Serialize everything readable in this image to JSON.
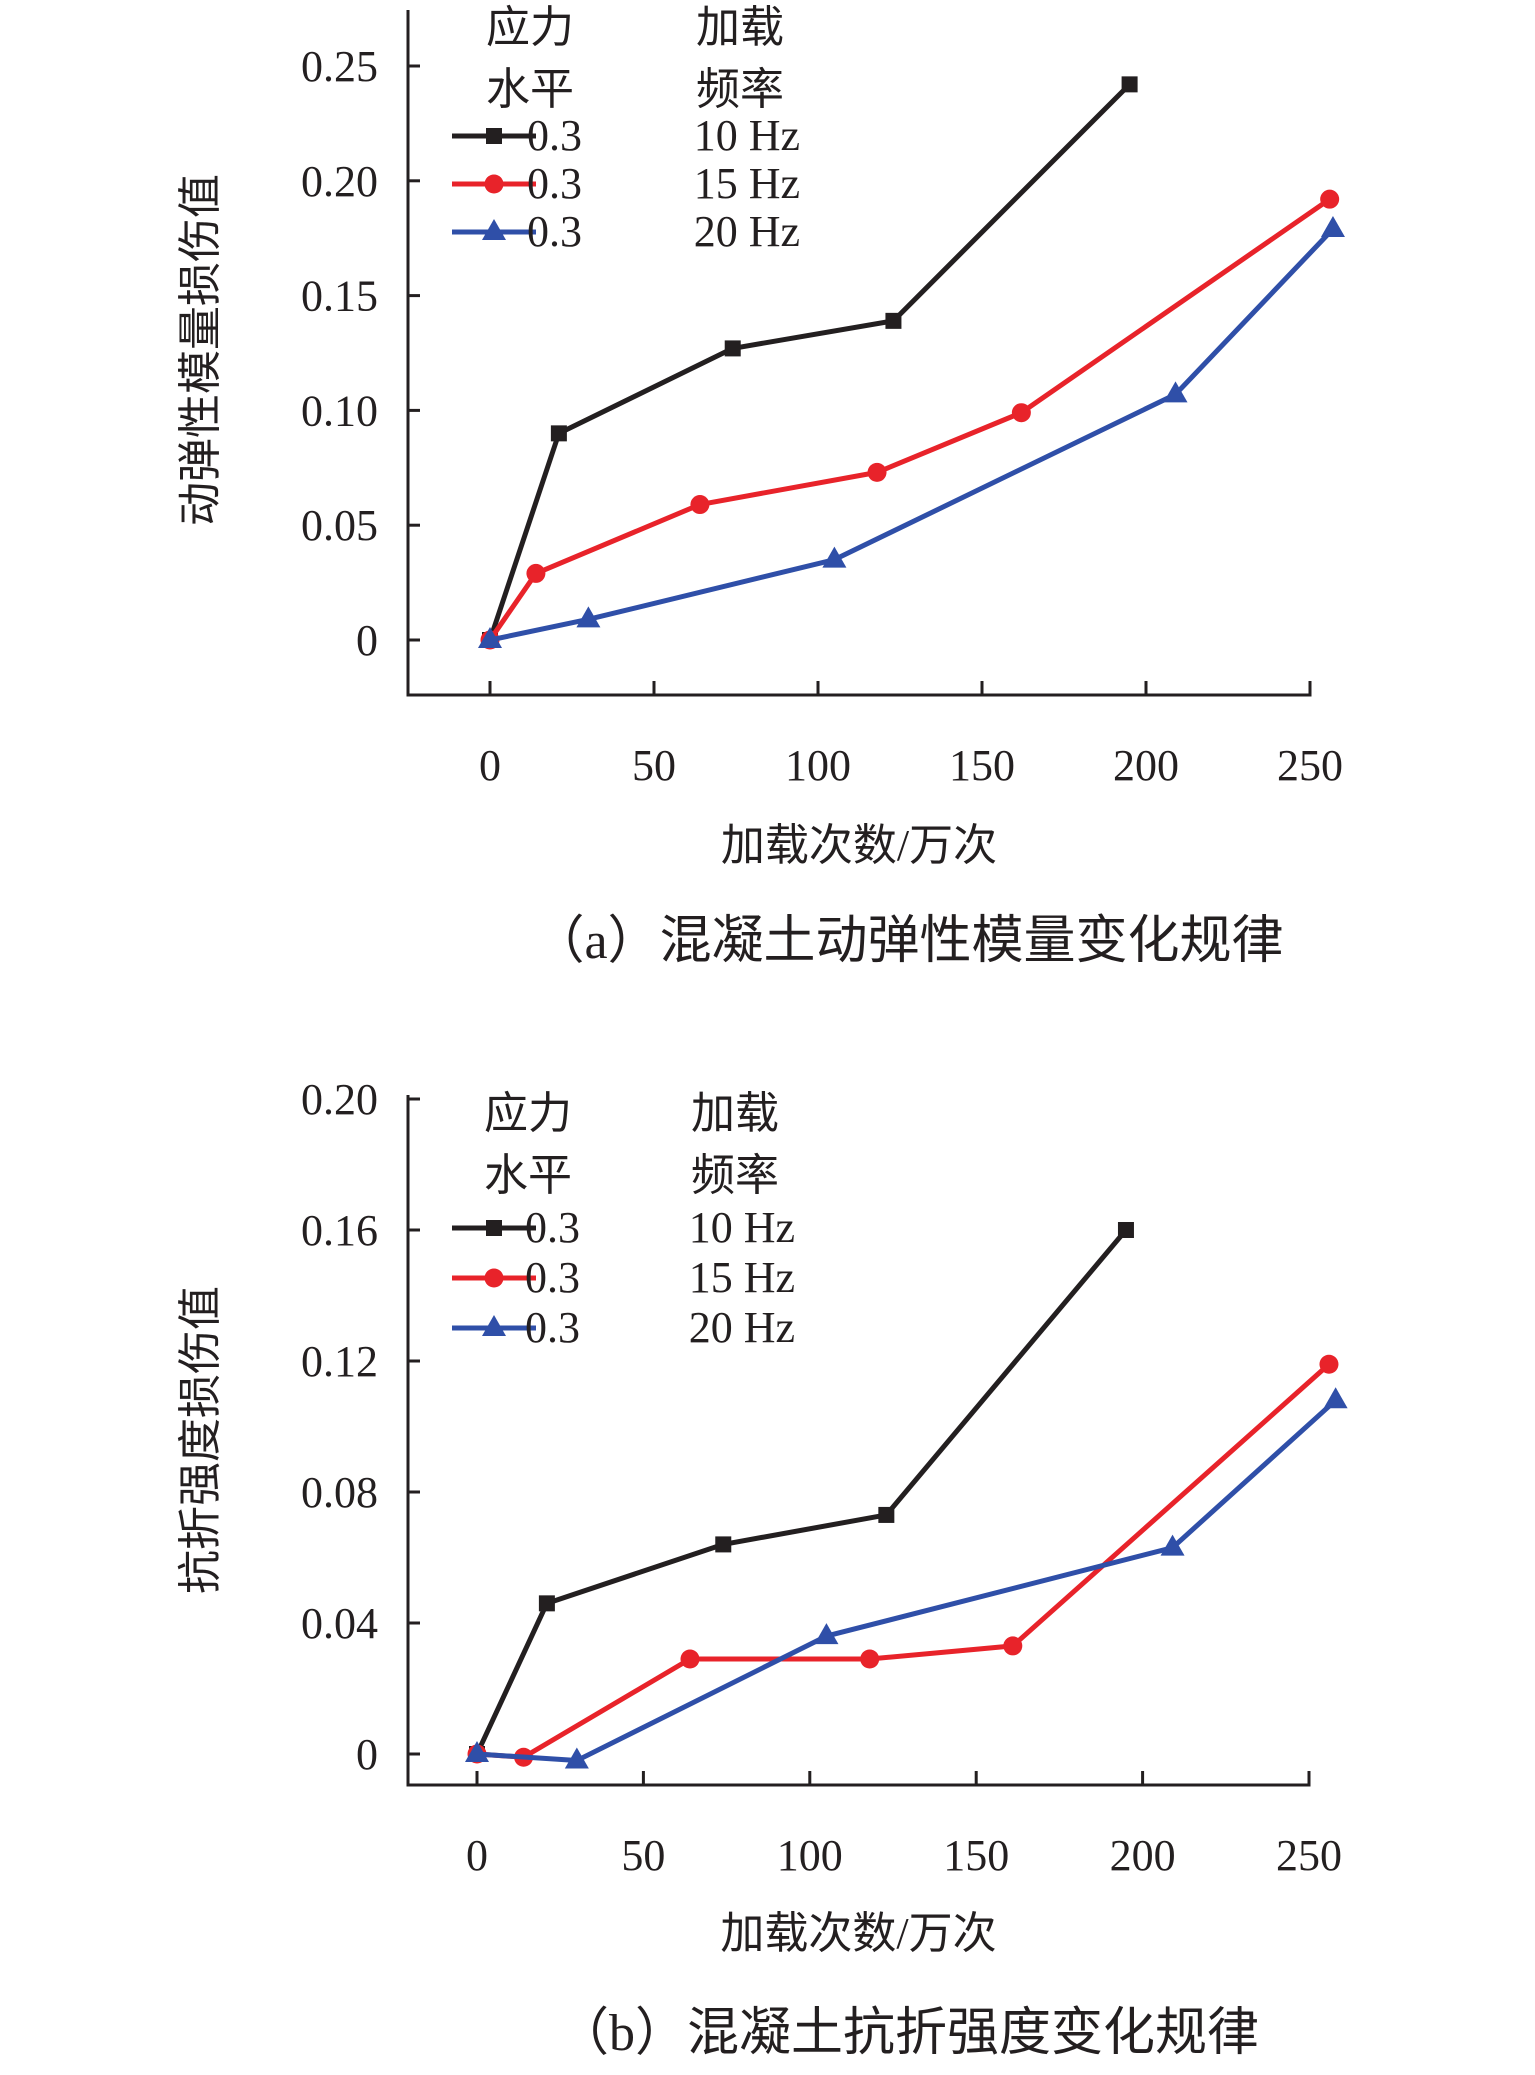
{
  "chart_data": [
    {
      "type": "line",
      "caption": "（a）混凝土动弹性模量变化规律",
      "xlabel": "加载次数/万次",
      "ylabel": "动弹性模量损伤值",
      "xlim": [
        -25,
        250
      ],
      "ylim": [
        -0.025,
        0.27
      ],
      "xticks": [
        0,
        50,
        100,
        150,
        200,
        250
      ],
      "xtick_labels": [
        "0",
        "50",
        "100",
        "150",
        "200",
        "250"
      ],
      "yticks": [
        0,
        0.05,
        0.1,
        0.15,
        0.2,
        0.25
      ],
      "ytick_labels": [
        "0",
        "0.05",
        "0.10",
        "0.15",
        "0.20",
        "0.25"
      ],
      "grid": false,
      "legend": {
        "placement": "top-left",
        "header": {
          "col1_line1": "应力",
          "col1_line2": "水平",
          "col2_line1": "加载",
          "col2_line2": "频率"
        }
      },
      "series": [
        {
          "stress": "0.3",
          "frequency": "10 Hz",
          "color": "#231f20",
          "marker": "square",
          "x": [
            0,
            21,
            74,
            123,
            195
          ],
          "y": [
            0,
            0.09,
            0.127,
            0.139,
            0.242
          ]
        },
        {
          "stress": "0.3",
          "frequency": "15 Hz",
          "color": "#e8232a",
          "marker": "circle",
          "x": [
            0,
            14,
            64,
            118,
            162,
            256
          ],
          "y": [
            0,
            0.029,
            0.059,
            0.073,
            0.099,
            0.192
          ]
        },
        {
          "stress": "0.3",
          "frequency": "20 Hz",
          "color": "#2f4fa8",
          "marker": "triangle",
          "x": [
            0,
            30,
            105,
            209,
            257
          ],
          "y": [
            0,
            0.009,
            0.035,
            0.107,
            0.179
          ]
        }
      ]
    },
    {
      "type": "line",
      "caption": "（b）混凝土抗折强度变化规律",
      "xlabel": "加载次数/万次",
      "ylabel": "抗折强度损伤值",
      "xlim": [
        -20,
        250
      ],
      "ylim": [
        -0.008,
        0.2
      ],
      "xticks": [
        0,
        50,
        100,
        150,
        200,
        250
      ],
      "xtick_labels": [
        "0",
        "50",
        "100",
        "150",
        "200",
        "250"
      ],
      "yticks": [
        0,
        0.04,
        0.08,
        0.12,
        0.16,
        0.2
      ],
      "ytick_labels": [
        "0",
        "0.04",
        "0.08",
        "0.12",
        "0.16",
        "0.20"
      ],
      "grid": false,
      "legend": {
        "placement": "top-left",
        "header": {
          "col1_line1": "应力",
          "col1_line2": "水平",
          "col2_line1": "加载",
          "col2_line2": "频率"
        }
      },
      "series": [
        {
          "stress": "0.3",
          "frequency": "10 Hz",
          "color": "#231f20",
          "marker": "square",
          "x": [
            0,
            21,
            74,
            123,
            195
          ],
          "y": [
            0,
            0.046,
            0.064,
            0.073,
            0.16
          ]
        },
        {
          "stress": "0.3",
          "frequency": "15 Hz",
          "color": "#e8232a",
          "marker": "circle",
          "x": [
            0,
            14,
            64,
            118,
            161,
            256
          ],
          "y": [
            0,
            -0.001,
            0.029,
            0.029,
            0.033,
            0.119
          ]
        },
        {
          "stress": "0.3",
          "frequency": "20 Hz",
          "color": "#2f4fa8",
          "marker": "triangle",
          "x": [
            0,
            30,
            105,
            209,
            258
          ],
          "y": [
            0,
            -0.002,
            0.036,
            0.063,
            0.108
          ]
        }
      ]
    }
  ]
}
